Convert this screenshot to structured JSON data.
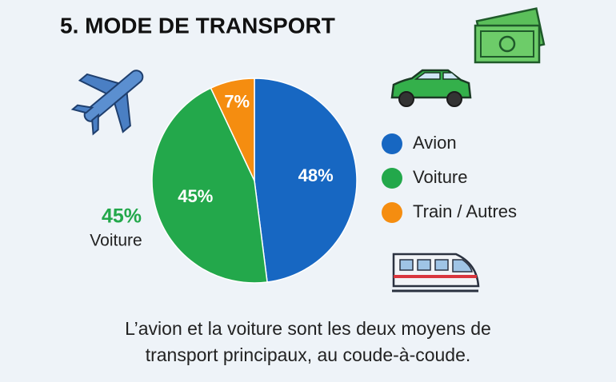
{
  "chart_data": {
    "type": "pie",
    "title": "5. MODE DE TRANSPORT",
    "categories": [
      "Avion",
      "Voiture",
      "Train / Autres"
    ],
    "values": [
      48,
      45,
      7
    ],
    "value_labels": [
      "48%",
      "45%",
      "7%"
    ],
    "colors": [
      "#1767c2",
      "#23a84b",
      "#f58d10"
    ],
    "annotation": {
      "text": "45%",
      "label": "Voiture"
    },
    "caption": [
      "L’avion et la voiture sont les deux moyens de",
      "transport principaux, au coude-à-coude."
    ]
  }
}
